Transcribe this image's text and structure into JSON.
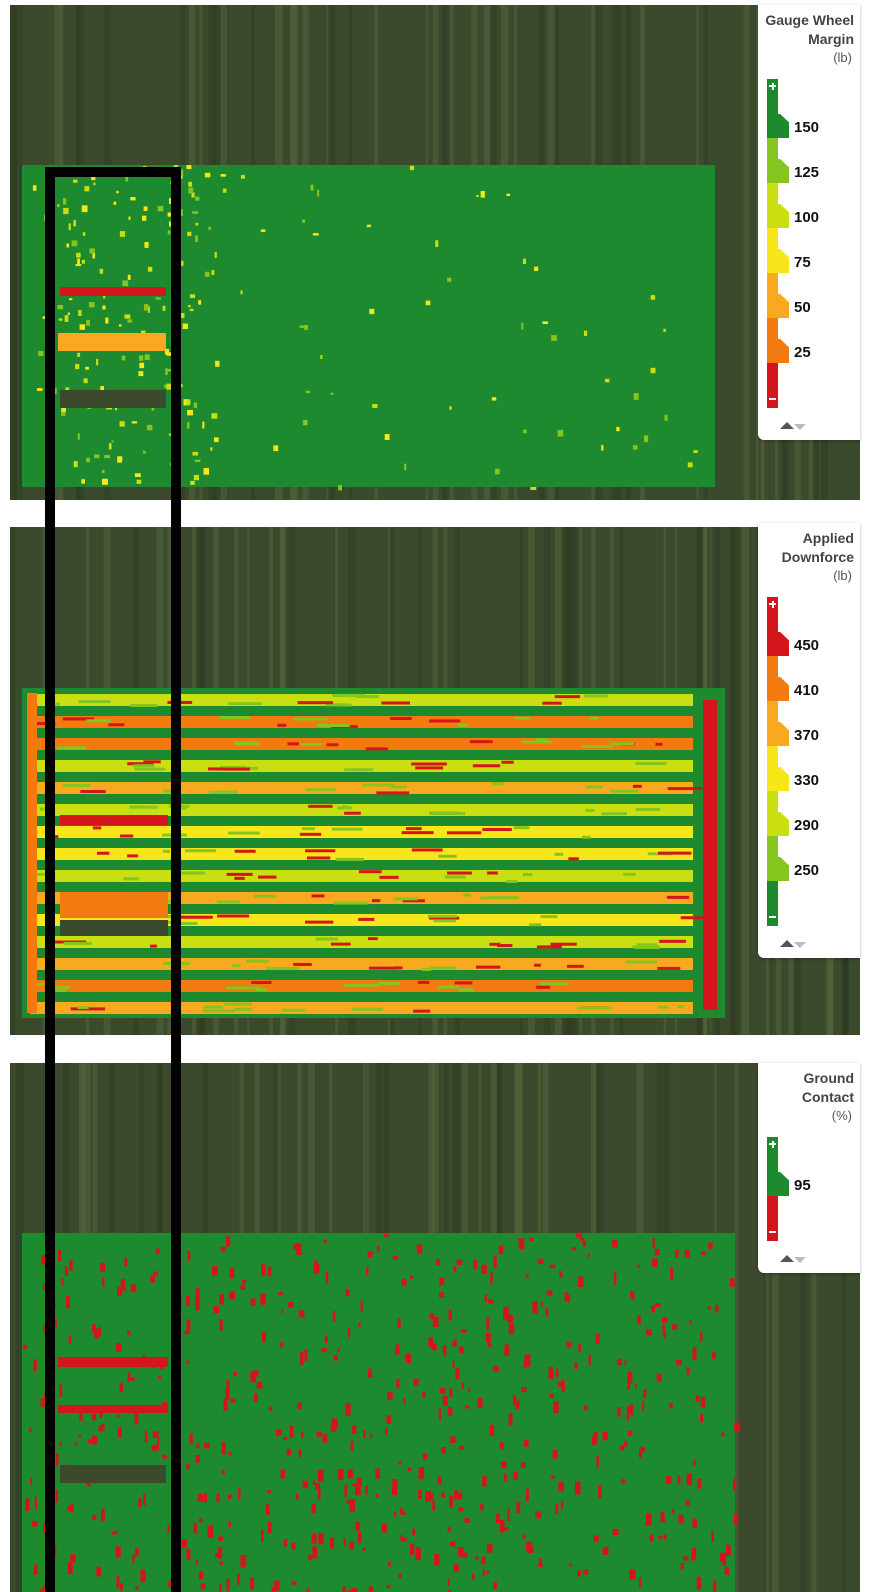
{
  "panels": [
    {
      "legend": {
        "title": "Gauge Wheel Margin",
        "unit": "(lb)",
        "bottom_color": "#d3161c",
        "levels": [
          {
            "label": 150,
            "color": "#1e8a30"
          },
          {
            "label": 125,
            "color": "#84c51e"
          },
          {
            "label": 100,
            "color": "#c9df12"
          },
          {
            "label": 75,
            "color": "#f7e61a"
          },
          {
            "label": 50,
            "color": "#f9a91f"
          },
          {
            "label": 25,
            "color": "#f27a0e"
          }
        ]
      }
    },
    {
      "legend": {
        "title": "Applied Downforce",
        "unit": "(lb)",
        "bottom_color": "#1e8a30",
        "levels": [
          {
            "label": 450,
            "color": "#d3161c"
          },
          {
            "label": 410,
            "color": "#f27a0e"
          },
          {
            "label": 370,
            "color": "#f9a91f"
          },
          {
            "label": 330,
            "color": "#f7e61a"
          },
          {
            "label": 290,
            "color": "#c9df12"
          },
          {
            "label": 250,
            "color": "#84c51e"
          }
        ]
      }
    },
    {
      "legend": {
        "title": "Ground Contact",
        "unit": "(%)",
        "bottom_color": "#d3161c",
        "levels": [
          {
            "label": 95,
            "color": "#1e8a30"
          }
        ]
      }
    }
  ]
}
